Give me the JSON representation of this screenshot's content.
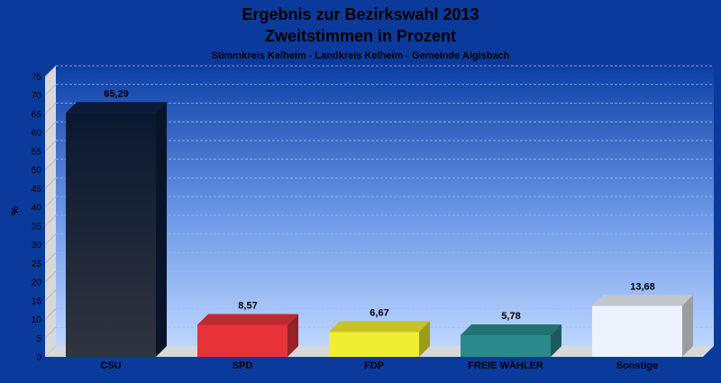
{
  "chart_data": {
    "type": "bar",
    "title": "Ergebnis zur Bezirkswahl 2013",
    "title_line2": "Zweitstimmen in Prozent",
    "subtitle": "Stimmkreis Kelheim - Landkreis Kelheim - Gemeinde Aiglsbach",
    "ylabel": "%",
    "ylim": [
      0,
      75
    ],
    "ytick_step": 5,
    "grid": true,
    "categories": [
      "CSU",
      "SPD",
      "FDP",
      "FREIE WÄHLER",
      "Sonstige"
    ],
    "values": [
      65.29,
      8.57,
      6.67,
      5.78,
      13.68
    ],
    "value_labels": [
      "65,29",
      "8,57",
      "6,67",
      "5,78",
      "13,68"
    ],
    "colors": [
      "#1c2638",
      "#e8323a",
      "#f0ee30",
      "#2a8a8c",
      "#eef2fc"
    ]
  }
}
